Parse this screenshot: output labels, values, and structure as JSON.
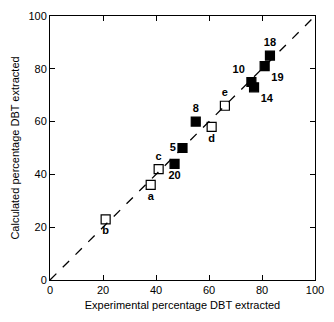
{
  "chart_data": {
    "type": "scatter",
    "x_label": "Experimental percentage DBT extracted",
    "y_label": "Calculated percentage DBT extracted",
    "xlim": [
      0,
      100
    ],
    "ylim": [
      0,
      100
    ],
    "xticks": [
      0,
      20,
      40,
      60,
      80,
      100
    ],
    "yticks": [
      0,
      20,
      40,
      60,
      80,
      100
    ],
    "grid": false,
    "series": [
      {
        "type": "line",
        "line_style": "dashed",
        "color": "#000000",
        "x": [
          0,
          100
        ],
        "values": [
          0,
          100
        ]
      },
      {
        "type": "scatter",
        "marker": "square-open",
        "color": "#000000",
        "x": [
          21,
          38,
          41,
          61,
          66
        ],
        "values": [
          23,
          36,
          42,
          58,
          66
        ],
        "labels": [
          "b",
          "a",
          "c",
          "d",
          "e"
        ]
      },
      {
        "type": "scatter",
        "marker": "square",
        "color": "#000000",
        "x": [
          47,
          50,
          55,
          76,
          77,
          81,
          83
        ],
        "values": [
          44,
          50,
          60,
          75,
          73,
          81,
          85
        ],
        "labels": [
          "20",
          "5",
          "8",
          "10",
          "14",
          "19",
          "18"
        ]
      }
    ]
  }
}
